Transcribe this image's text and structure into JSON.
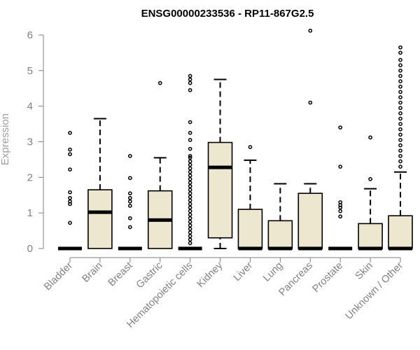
{
  "chart_data": {
    "type": "boxplot",
    "title": "ENSG00000233536 - RP11-867G2.5",
    "xlabel": "",
    "ylabel": "Expression",
    "ylim": [
      0,
      6
    ],
    "yticks": [
      0,
      1,
      2,
      3,
      4,
      5,
      6
    ],
    "grid": false,
    "legend": "none",
    "colors": {
      "box_fill": "#ede7cf",
      "stroke": "#000000",
      "axis": "#808080",
      "median": "#000000"
    },
    "categories": [
      "Bladder",
      "Brain",
      "Breast",
      "Gastric",
      "Hematopoietic cells",
      "Kidney",
      "Liver",
      "Lung",
      "Pancreas",
      "Prostate",
      "Skin",
      "Unknown / Other"
    ],
    "boxes": [
      {
        "name": "Bladder",
        "min": 0,
        "q1": 0,
        "median": 0,
        "q3": 0,
        "max": 0,
        "outliers": [
          3.25,
          2.78,
          2.65,
          2.22,
          1.58,
          1.42,
          1.32,
          1.25,
          0.72
        ]
      },
      {
        "name": "Brain",
        "min": 0,
        "q1": 0,
        "median": 1.02,
        "q3": 1.65,
        "max": 3.65,
        "outliers": []
      },
      {
        "name": "Breast",
        "min": 0,
        "q1": 0,
        "median": 0,
        "q3": 0,
        "max": 0,
        "outliers": [
          2.6,
          1.98,
          1.55,
          1.42,
          1.32,
          1.2,
          0.85,
          0.6
        ]
      },
      {
        "name": "Gastric",
        "min": 0,
        "q1": 0,
        "median": 0.8,
        "q3": 1.62,
        "max": 2.55,
        "outliers": [
          4.65
        ]
      },
      {
        "name": "Hematopoietic cells",
        "min": 0,
        "q1": 0,
        "median": 0,
        "q3": 0,
        "max": 0,
        "outliers": [
          4.85,
          4.75,
          4.65,
          4.45,
          3.55,
          3.25,
          3.05,
          2.8,
          2.6,
          2.55,
          2.45,
          2.35,
          2.25,
          2.15,
          2.05,
          1.95,
          1.85,
          1.75,
          1.65,
          1.55,
          1.45,
          1.35,
          1.25,
          1.15,
          1.05,
          0.95,
          0.85,
          0.75,
          0.65,
          0.55,
          0.45,
          0.35,
          0.25,
          0.15
        ]
      },
      {
        "name": "Kidney",
        "min": 0,
        "q1": 0.3,
        "median": 2.28,
        "q3": 2.98,
        "max": 4.75,
        "outliers": []
      },
      {
        "name": "Liver",
        "min": 0,
        "q1": 0,
        "median": 0,
        "q3": 1.1,
        "max": 2.48,
        "outliers": [
          2.85
        ]
      },
      {
        "name": "Lung",
        "min": 0,
        "q1": 0,
        "median": 0,
        "q3": 0.78,
        "max": 1.82,
        "outliers": []
      },
      {
        "name": "Pancreas",
        "min": 0,
        "q1": 0,
        "median": 0,
        "q3": 1.55,
        "max": 1.82,
        "outliers": [
          6.12,
          4.1
        ]
      },
      {
        "name": "Prostate",
        "min": 0,
        "q1": 0,
        "median": 0,
        "q3": 0,
        "max": 0,
        "outliers": [
          3.4,
          2.3,
          1.3,
          1.22,
          1.15,
          1.05,
          0.9
        ]
      },
      {
        "name": "Skin",
        "min": 0,
        "q1": 0,
        "median": 0,
        "q3": 0.7,
        "max": 1.68,
        "outliers": [
          3.12,
          1.95
        ]
      },
      {
        "name": "Unknown / Other",
        "min": 0,
        "q1": 0,
        "median": 0,
        "q3": 0.92,
        "max": 2.15,
        "outliers": [
          5.65,
          5.5,
          5.3,
          5.15,
          5.0,
          4.85,
          4.7,
          4.55,
          4.4,
          4.25,
          4.1,
          3.95,
          3.8,
          3.65,
          3.5,
          3.35,
          3.2,
          3.05,
          2.9,
          2.75,
          2.6,
          2.45,
          2.3
        ]
      }
    ]
  }
}
